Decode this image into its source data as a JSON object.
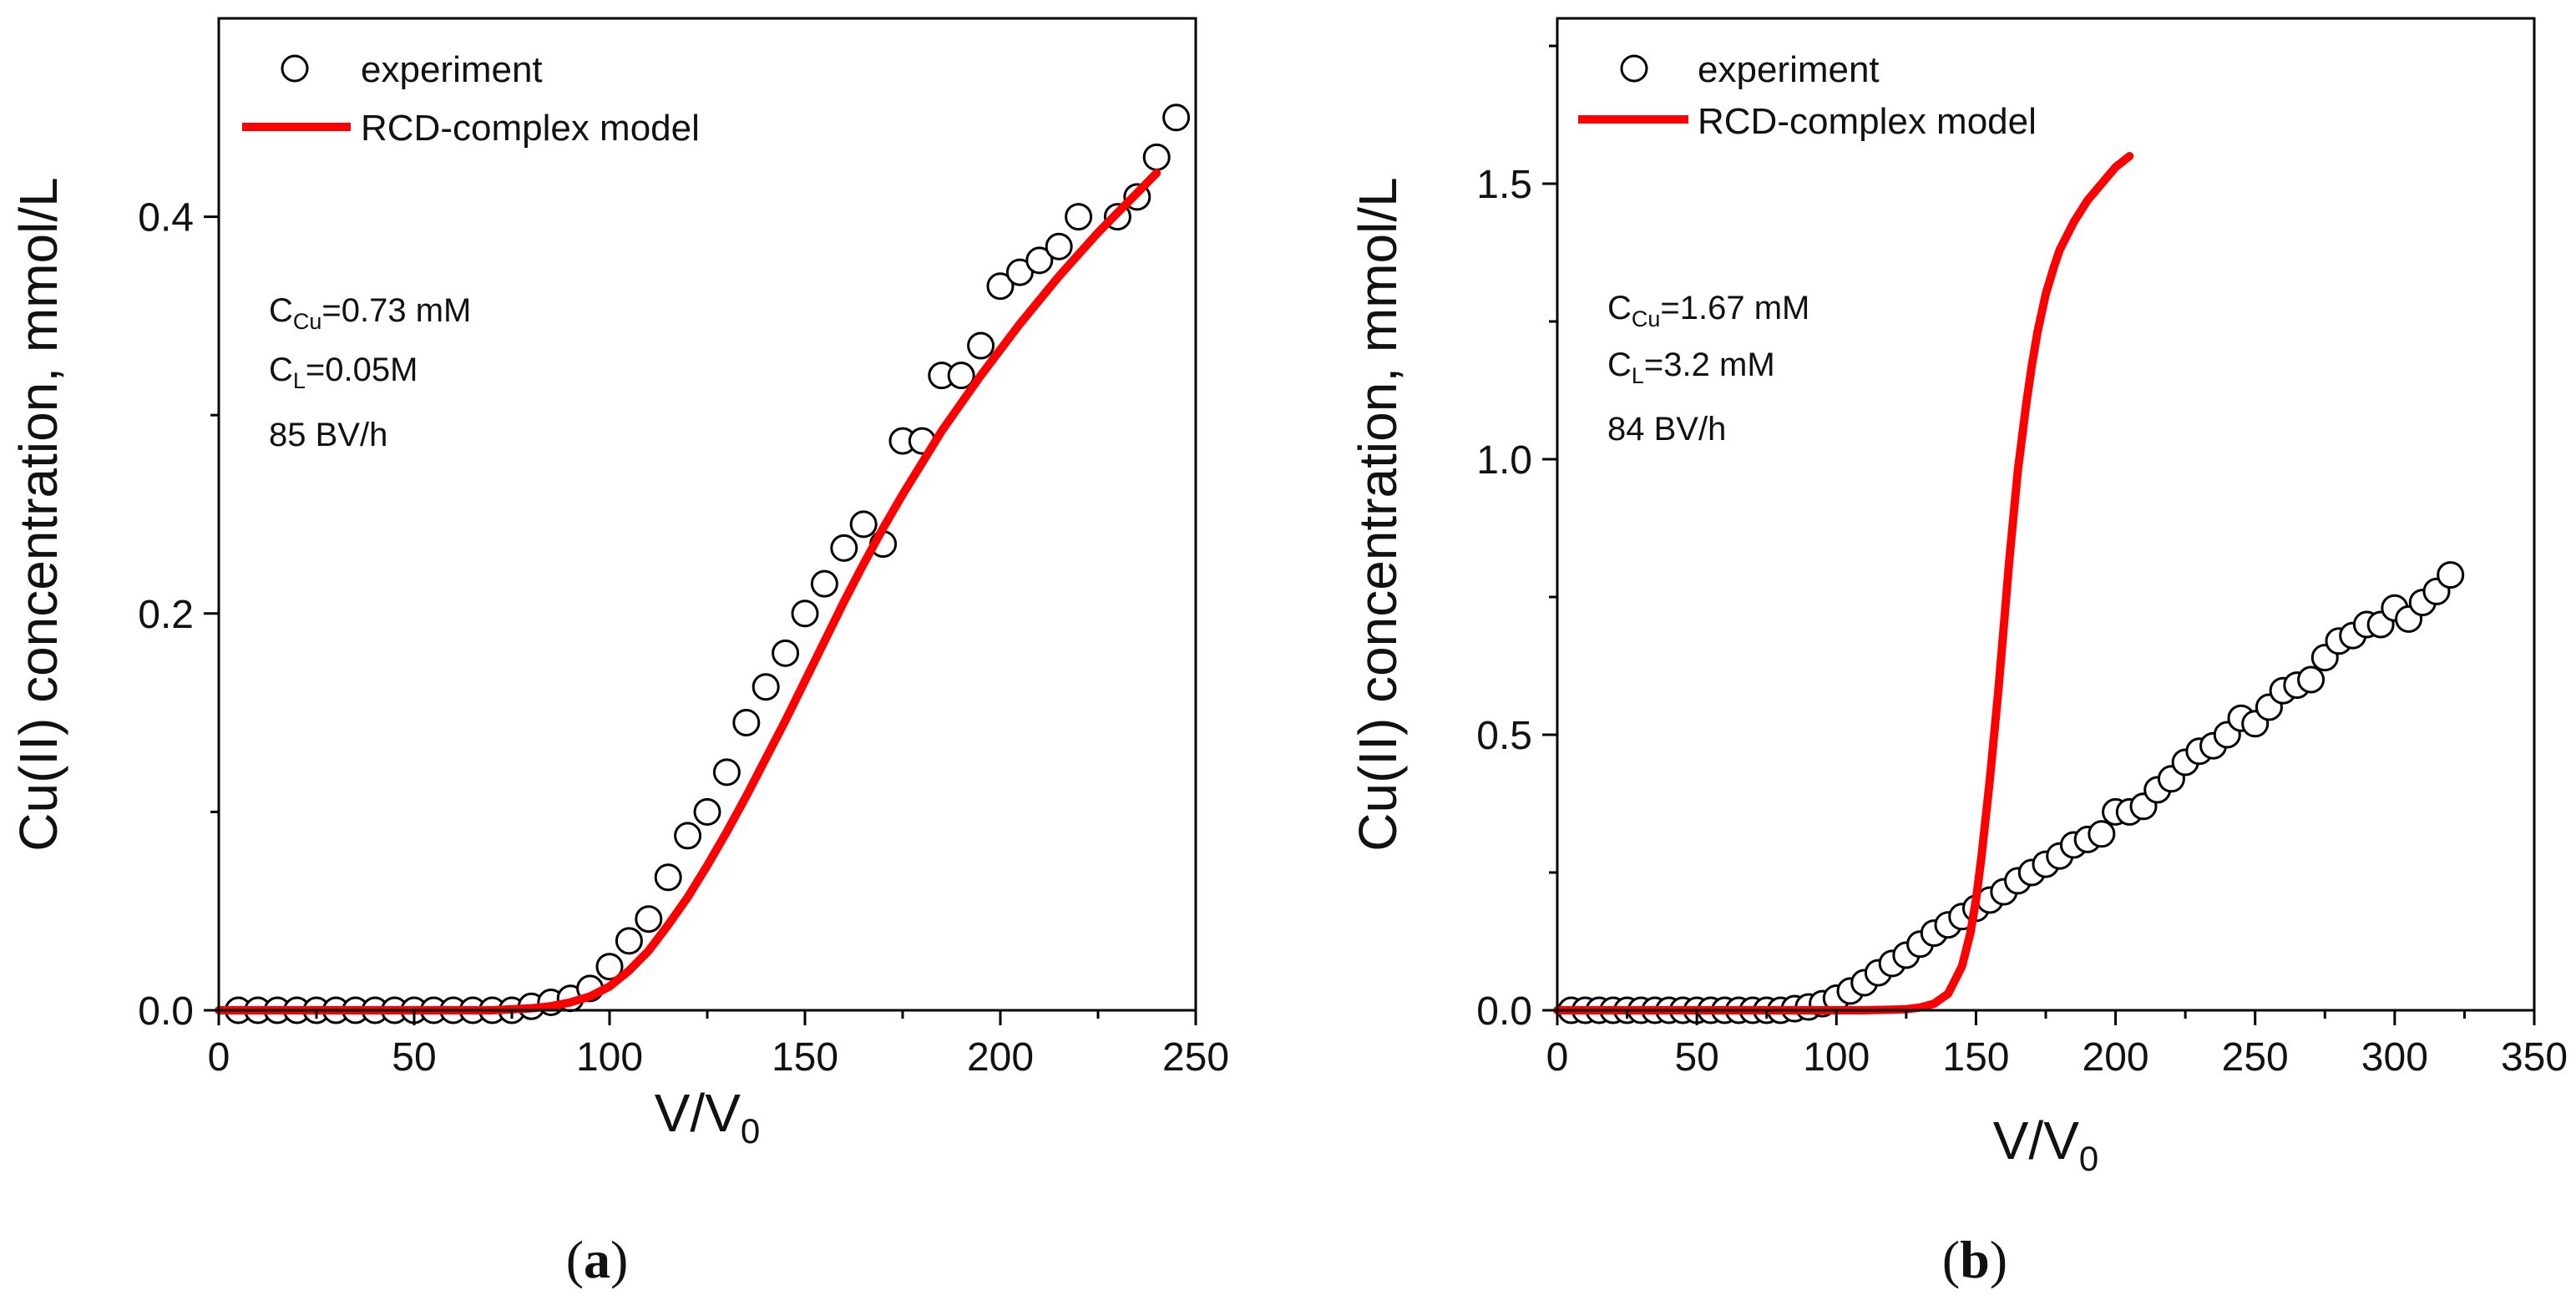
{
  "chart_data": [
    {
      "type": "scatter",
      "panel_label": "a",
      "xlabel": "V/V",
      "xlabel_sub": "0",
      "ylabel": "Cu(II) concentration, mmol/L",
      "xlim": [
        0,
        250
      ],
      "ylim": [
        0,
        0.5
      ],
      "xticks": [
        0,
        50,
        100,
        150,
        200,
        250
      ],
      "xtick_labels": [
        "0",
        "50",
        "100",
        "150",
        "200",
        "250"
      ],
      "yticks": [
        0.0,
        0.2,
        0.4
      ],
      "ytick_labels": [
        "0.0",
        "0.2",
        "0.4"
      ],
      "legend": {
        "position": "top-left",
        "entries": [
          "experiment",
          "RCD-complex model"
        ]
      },
      "annotation": {
        "line1": {
          "main": "C",
          "sub": "Cu",
          "rest": "=0.73 mM"
        },
        "line2": {
          "main": "C",
          "sub": "L",
          "rest": "=0.05M"
        },
        "line3": "85 BV/h"
      },
      "series": [
        {
          "name": "experiment",
          "marker": "open-circle",
          "x": [
            5,
            10,
            15,
            20,
            25,
            30,
            35,
            40,
            45,
            50,
            55,
            60,
            65,
            70,
            75,
            80,
            85,
            90,
            95,
            100,
            105,
            110,
            115,
            120,
            125,
            130,
            135,
            140,
            145,
            150,
            155,
            160,
            165,
            170,
            175,
            180,
            185,
            190,
            195,
            200,
            205,
            210,
            215,
            220,
            230,
            235,
            240,
            245
          ],
          "y": [
            0,
            0,
            0,
            0,
            0,
            0,
            0,
            0,
            0,
            0,
            0,
            0,
            0,
            0,
            0,
            0.002,
            0.004,
            0.006,
            0.011,
            0.022,
            0.035,
            0.046,
            0.067,
            0.088,
            0.1,
            0.12,
            0.145,
            0.163,
            0.18,
            0.2,
            0.215,
            0.233,
            0.245,
            0.235,
            0.287,
            0.287,
            0.32,
            0.32,
            0.335,
            0.365,
            0.372,
            0.378,
            0.385,
            0.4,
            0.4,
            0.41,
            0.43,
            0.45
          ]
        },
        {
          "name": "RCD-complex model",
          "color": "#ff0000",
          "x": [
            0,
            20,
            40,
            60,
            70,
            80,
            85,
            90,
            95,
            100,
            105,
            110,
            115,
            120,
            125,
            130,
            135,
            140,
            145,
            150,
            155,
            160,
            165,
            170,
            175,
            180,
            185,
            190,
            195,
            200,
            205,
            210,
            215,
            220,
            225,
            230,
            235,
            240
          ],
          "y": [
            0,
            0,
            0,
            0,
            0,
            0.001,
            0.002,
            0.004,
            0.007,
            0.012,
            0.02,
            0.03,
            0.043,
            0.057,
            0.073,
            0.09,
            0.108,
            0.127,
            0.146,
            0.166,
            0.186,
            0.206,
            0.225,
            0.243,
            0.26,
            0.276,
            0.292,
            0.306,
            0.32,
            0.333,
            0.346,
            0.358,
            0.37,
            0.381,
            0.392,
            0.402,
            0.412,
            0.422
          ]
        }
      ]
    },
    {
      "type": "scatter",
      "panel_label": "b",
      "xlabel": "V/V",
      "xlabel_sub": "0",
      "ylabel": "Cu(II) concentration, mmol/L",
      "xlim": [
        0,
        350
      ],
      "ylim": [
        0,
        1.8
      ],
      "xticks": [
        0,
        50,
        100,
        150,
        200,
        250,
        300,
        350
      ],
      "xtick_labels": [
        "0",
        "50",
        "100",
        "150",
        "200",
        "250",
        "300",
        "350"
      ],
      "yticks": [
        0.0,
        0.5,
        1.0,
        1.5
      ],
      "ytick_labels": [
        "0.0",
        "0.5",
        "1.0",
        "1.5"
      ],
      "legend": {
        "position": "top-left",
        "entries": [
          "experiment",
          "RCD-complex model"
        ]
      },
      "annotation": {
        "line1": {
          "main": "C",
          "sub": "Cu",
          "rest": "=1.67 mM"
        },
        "line2": {
          "main": "C",
          "sub": "L",
          "rest": "=3.2 mM"
        },
        "line3": "84 BV/h"
      },
      "series": [
        {
          "name": "experiment",
          "marker": "open-circle",
          "x": [
            5,
            10,
            15,
            20,
            25,
            30,
            35,
            40,
            45,
            50,
            55,
            60,
            65,
            70,
            75,
            80,
            85,
            90,
            95,
            100,
            105,
            110,
            115,
            120,
            125,
            130,
            135,
            140,
            145,
            150,
            155,
            160,
            165,
            170,
            175,
            180,
            185,
            190,
            195,
            200,
            205,
            210,
            215,
            220,
            225,
            230,
            235,
            240,
            245,
            250,
            255,
            260,
            265,
            270,
            275,
            280,
            285,
            290,
            295,
            300,
            305,
            310,
            315,
            320
          ],
          "y": [
            0,
            0,
            0,
            0,
            0,
            0,
            0,
            0,
            0,
            0,
            0,
            0,
            0,
            0,
            0,
            0,
            0.003,
            0.006,
            0.012,
            0.022,
            0.035,
            0.05,
            0.068,
            0.085,
            0.1,
            0.12,
            0.14,
            0.155,
            0.17,
            0.185,
            0.2,
            0.215,
            0.235,
            0.25,
            0.265,
            0.28,
            0.3,
            0.31,
            0.32,
            0.36,
            0.36,
            0.37,
            0.4,
            0.42,
            0.45,
            0.47,
            0.48,
            0.5,
            0.53,
            0.52,
            0.55,
            0.58,
            0.59,
            0.6,
            0.64,
            0.67,
            0.68,
            0.7,
            0.7,
            0.73,
            0.71,
            0.74,
            0.76,
            0.79
          ]
        },
        {
          "name": "RCD-complex model",
          "color": "#ff0000",
          "x": [
            0,
            50,
            100,
            110,
            120,
            125,
            130,
            135,
            140,
            145,
            148,
            150,
            152,
            155,
            158,
            160,
            162,
            165,
            168,
            170,
            172,
            175,
            178,
            180,
            185,
            190,
            195,
            200,
            205
          ],
          "y": [
            0,
            0,
            0,
            0,
            0.001,
            0.002,
            0.005,
            0.012,
            0.03,
            0.08,
            0.14,
            0.2,
            0.28,
            0.42,
            0.58,
            0.7,
            0.82,
            0.98,
            1.1,
            1.17,
            1.23,
            1.3,
            1.35,
            1.38,
            1.43,
            1.47,
            1.5,
            1.53,
            1.55
          ]
        }
      ]
    }
  ]
}
